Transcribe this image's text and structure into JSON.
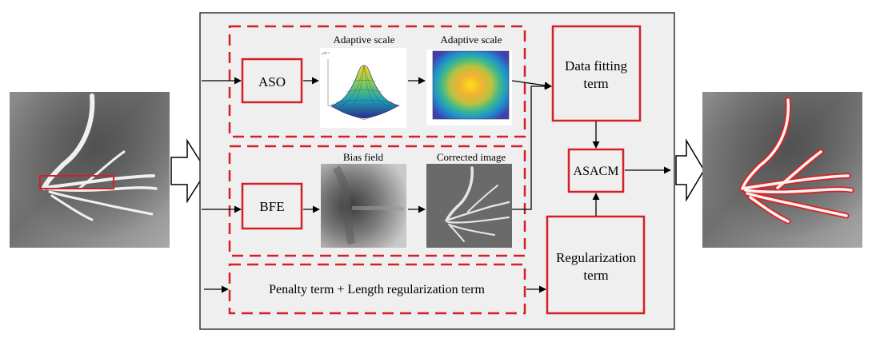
{
  "diagram": {
    "blocks": {
      "aso": "ASO",
      "bfe": "BFE",
      "data_fitting_line1": "Data fitting",
      "data_fitting_line2": "term",
      "asacm": "ASACM",
      "regularization_line1": "Regularization",
      "regularization_line2": "term",
      "penalty": "Penalty term + Length regularization term"
    },
    "image_titles": {
      "surface_plot": "Adaptive scale",
      "heatmap": "Adaptive scale",
      "bias_field": "Bias field",
      "corrected_image": "Corrected image"
    },
    "colors": {
      "panel_fill": "#efefef",
      "panel_border": "#333333",
      "block_border": "#d31f26",
      "dashed_border": "#d31f26",
      "arrow": "#000000",
      "contour": "#e02020"
    }
  }
}
